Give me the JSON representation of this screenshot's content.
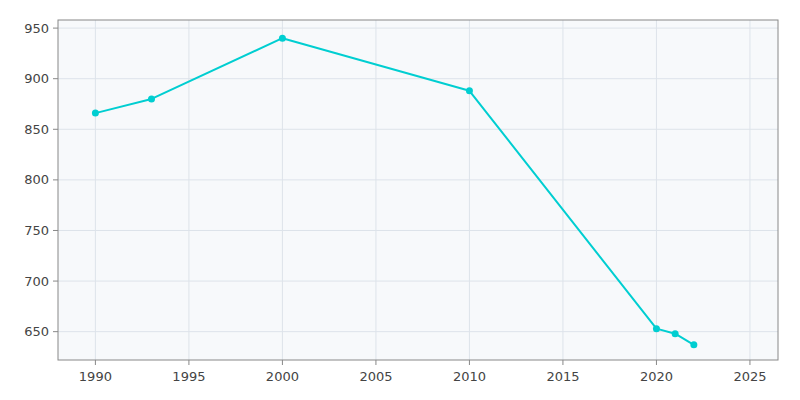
{
  "chart_data": {
    "type": "line",
    "x": [
      1990,
      1993,
      2000,
      2010,
      2020,
      2021,
      2022
    ],
    "values": [
      866,
      880,
      940,
      888,
      653,
      648,
      637
    ],
    "color": "#00CED1",
    "marker": "circle",
    "xlim": [
      1988,
      2026.5
    ],
    "ylim": [
      622,
      958
    ],
    "xticks": [
      1990,
      1995,
      2000,
      2005,
      2010,
      2015,
      2020,
      2025
    ],
    "yticks": [
      650,
      700,
      750,
      800,
      850,
      900,
      950
    ],
    "grid": true
  }
}
